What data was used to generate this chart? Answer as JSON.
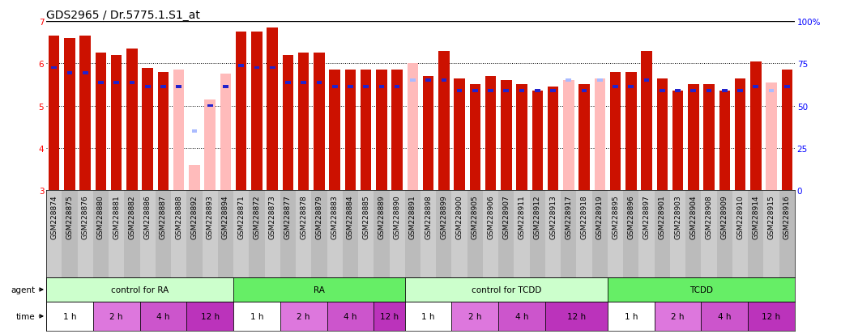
{
  "title": "GDS2965 / Dr.5775.1.S1_at",
  "samples": [
    "GSM228874",
    "GSM228875",
    "GSM228876",
    "GSM228880",
    "GSM228881",
    "GSM228882",
    "GSM228886",
    "GSM228887",
    "GSM228888",
    "GSM228892",
    "GSM228893",
    "GSM228894",
    "GSM228871",
    "GSM228872",
    "GSM228873",
    "GSM228877",
    "GSM228878",
    "GSM228879",
    "GSM228883",
    "GSM228884",
    "GSM228885",
    "GSM228889",
    "GSM228890",
    "GSM228891",
    "GSM228898",
    "GSM228899",
    "GSM228900",
    "GSM228905",
    "GSM228906",
    "GSM228907",
    "GSM228911",
    "GSM228912",
    "GSM228913",
    "GSM228917",
    "GSM228918",
    "GSM228919",
    "GSM228895",
    "GSM228896",
    "GSM228897",
    "GSM228901",
    "GSM228903",
    "GSM228904",
    "GSM228908",
    "GSM228909",
    "GSM228910",
    "GSM228914",
    "GSM228915",
    "GSM228916"
  ],
  "red_values": [
    6.65,
    6.6,
    6.65,
    6.25,
    6.2,
    6.35,
    5.9,
    5.8,
    5.85,
    3.6,
    5.15,
    5.75,
    6.75,
    6.75,
    6.85,
    6.2,
    6.25,
    6.25,
    5.85,
    5.85,
    5.85,
    5.85,
    5.85,
    6.0,
    5.7,
    6.3,
    5.65,
    5.5,
    5.7,
    5.6,
    5.5,
    5.35,
    5.45,
    5.6,
    5.5,
    5.65,
    5.8,
    5.8,
    6.3,
    5.65,
    5.35,
    5.5,
    5.5,
    5.35,
    5.65,
    6.05,
    5.55,
    5.85
  ],
  "pink_absent": [
    false,
    false,
    false,
    false,
    false,
    false,
    false,
    false,
    true,
    true,
    true,
    true,
    false,
    false,
    false,
    false,
    false,
    false,
    false,
    false,
    false,
    false,
    false,
    true,
    false,
    false,
    false,
    false,
    false,
    false,
    false,
    false,
    false,
    true,
    false,
    true,
    false,
    false,
    false,
    false,
    false,
    false,
    false,
    false,
    false,
    false,
    true,
    false
  ],
  "blue_values": [
    5.9,
    5.78,
    5.78,
    5.55,
    5.55,
    5.55,
    5.45,
    5.45,
    5.45,
    4.4,
    5.0,
    5.45,
    5.95,
    5.9,
    5.9,
    5.55,
    5.55,
    5.55,
    5.45,
    5.45,
    5.45,
    5.45,
    5.45,
    5.6,
    5.6,
    5.6,
    5.35,
    5.35,
    5.35,
    5.35,
    5.35,
    5.35,
    5.35,
    5.6,
    5.35,
    5.6,
    5.45,
    5.45,
    5.6,
    5.35,
    5.35,
    5.35,
    5.35,
    5.35,
    5.35,
    5.45,
    5.35,
    5.45
  ],
  "blue_absent": [
    false,
    false,
    false,
    false,
    false,
    false,
    false,
    false,
    false,
    true,
    false,
    false,
    false,
    false,
    false,
    false,
    false,
    false,
    false,
    false,
    false,
    false,
    false,
    true,
    false,
    false,
    false,
    false,
    false,
    false,
    false,
    false,
    false,
    true,
    false,
    true,
    false,
    false,
    false,
    false,
    false,
    false,
    false,
    false,
    false,
    false,
    true,
    false
  ],
  "agent_groups": [
    {
      "label": "control for RA",
      "start": 0,
      "end": 11
    },
    {
      "label": "RA",
      "start": 12,
      "end": 22
    },
    {
      "label": "control for TCDD",
      "start": 23,
      "end": 35
    },
    {
      "label": "TCDD",
      "start": 36,
      "end": 47
    }
  ],
  "time_groups": [
    {
      "label": "1 h",
      "start": 0,
      "end": 2
    },
    {
      "label": "2 h",
      "start": 3,
      "end": 5
    },
    {
      "label": "4 h",
      "start": 6,
      "end": 8
    },
    {
      "label": "12 h",
      "start": 9,
      "end": 11
    },
    {
      "label": "1 h",
      "start": 12,
      "end": 14
    },
    {
      "label": "2 h",
      "start": 15,
      "end": 17
    },
    {
      "label": "4 h",
      "start": 18,
      "end": 20
    },
    {
      "label": "12 h",
      "start": 21,
      "end": 22
    },
    {
      "label": "1 h",
      "start": 23,
      "end": 25
    },
    {
      "label": "2 h",
      "start": 26,
      "end": 28
    },
    {
      "label": "4 h",
      "start": 29,
      "end": 31
    },
    {
      "label": "12 h",
      "start": 32,
      "end": 35
    },
    {
      "label": "1 h",
      "start": 36,
      "end": 38
    },
    {
      "label": "2 h",
      "start": 39,
      "end": 41
    },
    {
      "label": "4 h",
      "start": 42,
      "end": 44
    },
    {
      "label": "12 h",
      "start": 45,
      "end": 47
    }
  ],
  "ylim": [
    3,
    7
  ],
  "yticks": [
    3,
    4,
    5,
    6,
    7
  ],
  "right_yticks": [
    0,
    25,
    50,
    75,
    100
  ],
  "right_ylabels": [
    "0",
    "25",
    "50",
    "75",
    "100%"
  ],
  "bar_width": 0.7,
  "bar_color_normal": "#cc1100",
  "bar_color_absent": "#ffbbbb",
  "blue_color_normal": "#2222cc",
  "blue_color_absent": "#aabbff",
  "background_color": "#ffffff",
  "title_fontsize": 10,
  "tick_fontsize": 6.5,
  "agent_color_light": "#ccffcc",
  "agent_color_dark": "#66ee66",
  "time_color_1h": "#ffffff",
  "time_color_2h": "#dd77dd",
  "time_color_4h": "#cc55cc",
  "time_color_12h": "#bb33bb",
  "label_row_bg": "#cccccc"
}
